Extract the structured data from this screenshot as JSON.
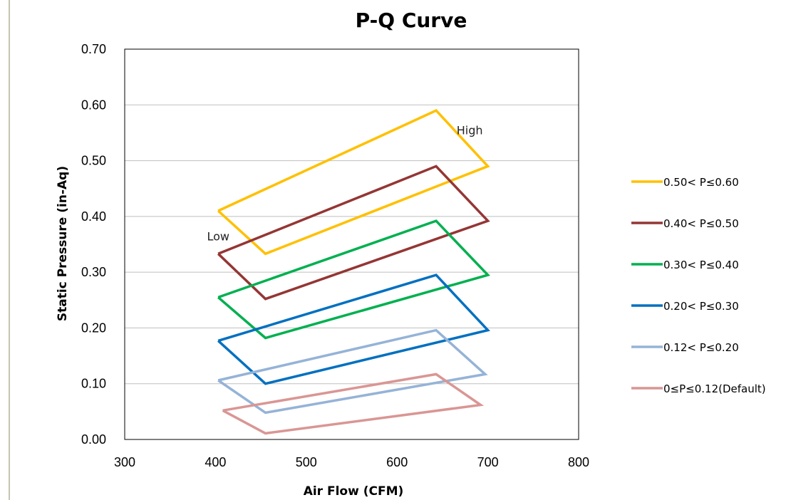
{
  "chart_data": {
    "type": "line",
    "title": "P-Q Curve",
    "xlabel": "Air Flow (CFM)",
    "ylabel": "Static Pressure (in-Aq)",
    "xlim": [
      300,
      800
    ],
    "ylim": [
      0,
      0.7
    ],
    "x_ticks": [
      "300",
      "400",
      "500",
      "600",
      "700",
      "800"
    ],
    "y_ticks": [
      "0.00",
      "0.10",
      "0.20",
      "0.30",
      "0.40",
      "0.50",
      "0.60",
      "0.70"
    ],
    "grid": "horizontal",
    "legend_position": "right",
    "annotations": [
      {
        "text": "High",
        "x": 680,
        "y": 0.555
      },
      {
        "text": "Low",
        "x": 403,
        "y": 0.365
      }
    ],
    "series": [
      {
        "name": "0.50< P≤0.60",
        "color": "#FFC000",
        "points": [
          [
            403,
            0.41
          ],
          [
            643,
            0.59
          ],
          [
            700,
            0.49
          ],
          [
            455,
            0.333
          ],
          [
            403,
            0.41
          ]
        ]
      },
      {
        "name": "0.40< P≤0.50",
        "color": "#943634",
        "points": [
          [
            403,
            0.333
          ],
          [
            643,
            0.49
          ],
          [
            700,
            0.392
          ],
          [
            455,
            0.252
          ],
          [
            403,
            0.333
          ]
        ]
      },
      {
        "name": "0.30< P≤0.40",
        "color": "#00B050",
        "points": [
          [
            403,
            0.255
          ],
          [
            643,
            0.392
          ],
          [
            700,
            0.295
          ],
          [
            455,
            0.182
          ],
          [
            403,
            0.255
          ]
        ]
      },
      {
        "name": "0.20< P≤0.30",
        "color": "#0070C0",
        "points": [
          [
            403,
            0.177
          ],
          [
            643,
            0.295
          ],
          [
            700,
            0.196
          ],
          [
            455,
            0.1
          ],
          [
            403,
            0.177
          ]
        ]
      },
      {
        "name": "0.12< P≤0.20",
        "color": "#95B3D7",
        "points": [
          [
            403,
            0.106
          ],
          [
            643,
            0.196
          ],
          [
            697,
            0.117
          ],
          [
            455,
            0.048
          ],
          [
            403,
            0.106
          ]
        ]
      },
      {
        "name": "0≤P≤0.12(Default)",
        "color": "#D99694",
        "points": [
          [
            408,
            0.052
          ],
          [
            643,
            0.117
          ],
          [
            692,
            0.062
          ],
          [
            455,
            0.011
          ],
          [
            408,
            0.052
          ]
        ]
      }
    ]
  }
}
